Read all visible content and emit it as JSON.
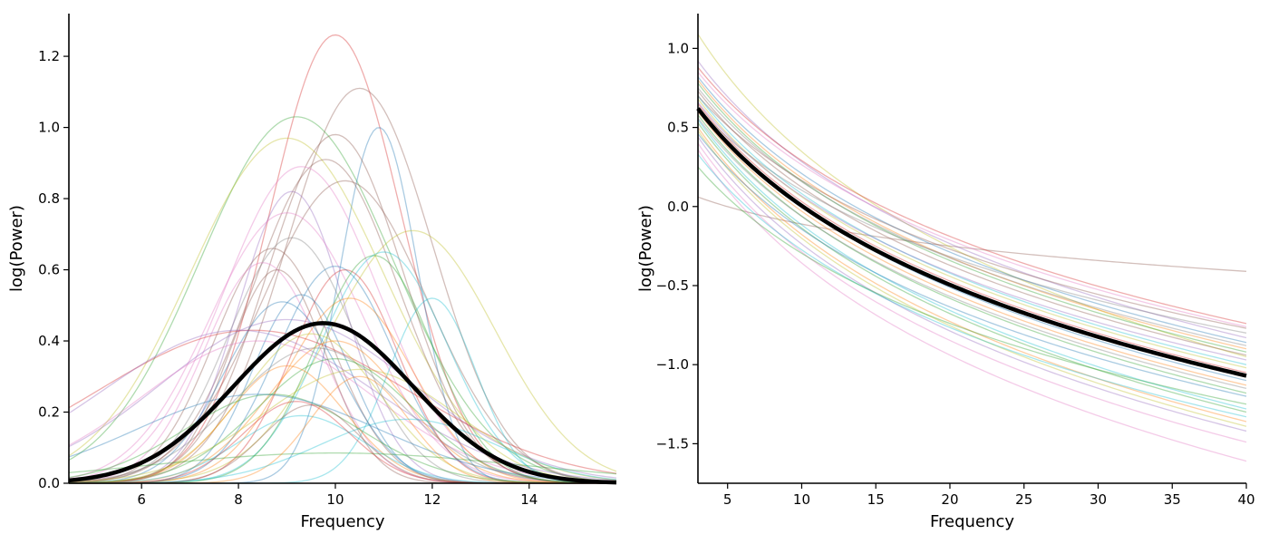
{
  "chart_data": [
    {
      "type": "line",
      "title": "",
      "xlabel": "Frequency",
      "ylabel": "log(Power)",
      "xlim": [
        4.5,
        15.8
      ],
      "ylim": [
        0,
        1.32
      ],
      "xticks": [
        6,
        8,
        10,
        12,
        14
      ],
      "xtick_labels": [
        "6",
        "8",
        "10",
        "12",
        "14"
      ],
      "yticks": [
        0.0,
        0.2,
        0.4,
        0.6,
        0.8,
        1.0,
        1.2
      ],
      "ytick_labels": [
        "0.0",
        "0.2",
        "0.4",
        "0.6",
        "0.8",
        "1.0",
        "1.2"
      ],
      "grid": false,
      "curve_model": "gaussian",
      "background_series": [
        {
          "color": "#d62728",
          "center": 10.0,
          "height": 1.26,
          "width": 1.35
        },
        {
          "color": "#8c564b",
          "center": 10.5,
          "height": 1.11,
          "width": 1.5
        },
        {
          "color": "#2ca02c",
          "center": 9.2,
          "height": 1.03,
          "width": 2.0
        },
        {
          "color": "#1f77b4",
          "center": 10.9,
          "height": 1.0,
          "width": 0.8
        },
        {
          "color": "#bcbd22",
          "center": 9.0,
          "height": 0.97,
          "width": 2.0
        },
        {
          "color": "#8c564b",
          "center": 10.0,
          "height": 0.98,
          "width": 1.4
        },
        {
          "color": "#8c564b",
          "center": 9.8,
          "height": 0.91,
          "width": 1.5
        },
        {
          "color": "#e377c2",
          "center": 9.3,
          "height": 0.89,
          "width": 1.6
        },
        {
          "color": "#8c564b",
          "center": 10.2,
          "height": 0.85,
          "width": 1.7
        },
        {
          "color": "#9467bd",
          "center": 9.1,
          "height": 0.82,
          "width": 1.1
        },
        {
          "color": "#e377c2",
          "center": 9.0,
          "height": 0.76,
          "width": 1.6
        },
        {
          "color": "#bcbd22",
          "center": 11.6,
          "height": 0.71,
          "width": 1.7
        },
        {
          "color": "#7f7f7f",
          "center": 9.1,
          "height": 0.69,
          "width": 1.3
        },
        {
          "color": "#8c564b",
          "center": 8.7,
          "height": 0.66,
          "width": 1.2
        },
        {
          "color": "#17becf",
          "center": 11.0,
          "height": 0.65,
          "width": 1.3
        },
        {
          "color": "#e377c2",
          "center": 8.5,
          "height": 0.62,
          "width": 1.2
        },
        {
          "color": "#1f77b4",
          "center": 10.0,
          "height": 0.61,
          "width": 1.2
        },
        {
          "color": "#d62728",
          "center": 10.2,
          "height": 0.6,
          "width": 1.1
        },
        {
          "color": "#8c564b",
          "center": 8.8,
          "height": 0.6,
          "width": 1.0
        },
        {
          "color": "#2ca02c",
          "center": 10.8,
          "height": 0.64,
          "width": 1.2
        },
        {
          "color": "#1f77b4",
          "center": 9.3,
          "height": 0.53,
          "width": 1.0
        },
        {
          "color": "#17becf",
          "center": 12.0,
          "height": 0.52,
          "width": 0.9
        },
        {
          "color": "#ff7f0e",
          "center": 10.3,
          "height": 0.52,
          "width": 1.3
        },
        {
          "color": "#1f77b4",
          "center": 8.9,
          "height": 0.51,
          "width": 1.2
        },
        {
          "color": "#9467bd",
          "center": 9.0,
          "height": 0.46,
          "width": 2.6
        },
        {
          "color": "#d62728",
          "center": 8.3,
          "height": 0.43,
          "width": 3.2
        },
        {
          "color": "#9467bd",
          "center": 8.0,
          "height": 0.43,
          "width": 2.8
        },
        {
          "color": "#e377c2",
          "center": 8.4,
          "height": 0.4,
          "width": 2.4
        },
        {
          "color": "#bcbd22",
          "center": 9.5,
          "height": 0.42,
          "width": 1.4
        },
        {
          "color": "#ff7f0e",
          "center": 10.0,
          "height": 0.4,
          "width": 1.4
        },
        {
          "color": "#7f7f7f",
          "center": 9.6,
          "height": 0.38,
          "width": 1.7
        },
        {
          "color": "#2ca02c",
          "center": 10.0,
          "height": 0.35,
          "width": 1.6
        },
        {
          "color": "#ff7f0e",
          "center": 9.0,
          "height": 0.33,
          "width": 1.2
        },
        {
          "color": "#bcbd22",
          "center": 10.5,
          "height": 0.32,
          "width": 2.0
        },
        {
          "color": "#2ca02c",
          "center": 8.7,
          "height": 0.25,
          "width": 1.8
        },
        {
          "color": "#1f77b4",
          "center": 8.4,
          "height": 0.25,
          "width": 2.5
        },
        {
          "color": "#8c564b",
          "center": 9.5,
          "height": 0.22,
          "width": 1.0
        },
        {
          "color": "#17becf",
          "center": 9.3,
          "height": 0.19,
          "width": 1.3
        },
        {
          "color": "#2ca02c",
          "center": 10.0,
          "height": 0.085,
          "width": 3.8
        },
        {
          "color": "#ff7f0e",
          "center": 10.5,
          "height": 0.3,
          "width": 1.0
        },
        {
          "color": "#17becf",
          "center": 11.5,
          "height": 0.18,
          "width": 1.8
        },
        {
          "color": "#d62728",
          "center": 9.2,
          "height": 0.23,
          "width": 1.1
        }
      ],
      "mean_series": {
        "color": "#000000",
        "center": 9.75,
        "height": 0.45,
        "width": 1.85
      }
    },
    {
      "type": "line",
      "title": "",
      "xlabel": "Frequency",
      "ylabel": "log(Power)",
      "xlim": [
        3,
        40
      ],
      "ylim": [
        -1.75,
        1.22
      ],
      "xticks": [
        5,
        10,
        15,
        20,
        25,
        30,
        35,
        40
      ],
      "xtick_labels": [
        "5",
        "10",
        "15",
        "20",
        "25",
        "30",
        "35",
        "40"
      ],
      "yticks": [
        -1.5,
        -1.0,
        -0.5,
        0.0,
        0.5,
        1.0
      ],
      "ytick_labels": [
        "−1.5",
        "−1.0",
        "−0.5",
        "0.0",
        "0.5",
        "1.0"
      ],
      "grid": false,
      "curve_model": "aperiodic",
      "background_series": [
        {
          "color": "#8c564b",
          "value_at_3": 0.06,
          "value_at_40": -0.41,
          "knee": 5.0
        },
        {
          "color": "#bcbd22",
          "value_at_3": 1.09,
          "value_at_40": -0.95,
          "knee": 5.0
        },
        {
          "color": "#9467bd",
          "value_at_3": 0.92,
          "value_at_40": -0.83,
          "knee": 5.0
        },
        {
          "color": "#e377c2",
          "value_at_3": 0.85,
          "value_at_40": -0.76,
          "knee": 5.0
        },
        {
          "color": "#d62728",
          "value_at_3": 0.88,
          "value_at_40": -0.74,
          "knee": 5.0
        },
        {
          "color": "#1f77b4",
          "value_at_3": 0.82,
          "value_at_40": -0.86,
          "knee": 5.0
        },
        {
          "color": "#ff7f0e",
          "value_at_3": 0.8,
          "value_at_40": -0.9,
          "knee": 5.0
        },
        {
          "color": "#2ca02c",
          "value_at_3": 0.78,
          "value_at_40": -0.92,
          "knee": 5.0
        },
        {
          "color": "#7f7f7f",
          "value_at_3": 0.75,
          "value_at_40": -0.88,
          "knee": 5.0
        },
        {
          "color": "#8c564b",
          "value_at_3": 0.73,
          "value_at_40": -0.94,
          "knee": 5.0
        },
        {
          "color": "#17becf",
          "value_at_3": 0.7,
          "value_at_40": -1.0,
          "knee": 5.0
        },
        {
          "color": "#bcbd22",
          "value_at_3": 0.68,
          "value_at_40": -1.02,
          "knee": 5.0
        },
        {
          "color": "#9467bd",
          "value_at_3": 0.66,
          "value_at_40": -0.97,
          "knee": 5.0
        },
        {
          "color": "#d62728",
          "value_at_3": 0.65,
          "value_at_40": -1.05,
          "knee": 5.0
        },
        {
          "color": "#1f77b4",
          "value_at_3": 0.63,
          "value_at_40": -1.1,
          "knee": 5.0
        },
        {
          "color": "#ff7f0e",
          "value_at_3": 0.6,
          "value_at_40": -1.13,
          "knee": 5.0
        },
        {
          "color": "#2ca02c",
          "value_at_3": 0.58,
          "value_at_40": -1.18,
          "knee": 5.0
        },
        {
          "color": "#7f7f7f",
          "value_at_3": 0.56,
          "value_at_40": -1.15,
          "knee": 5.0
        },
        {
          "color": "#17becf",
          "value_at_3": 0.55,
          "value_at_40": -1.28,
          "knee": 5.0
        },
        {
          "color": "#2ca02c",
          "value_at_3": 0.53,
          "value_at_40": -1.3,
          "knee": 5.0
        },
        {
          "color": "#ff7f0e",
          "value_at_3": 0.5,
          "value_at_40": -1.36,
          "knee": 5.0
        },
        {
          "color": "#bcbd22",
          "value_at_3": 0.48,
          "value_at_40": -1.39,
          "knee": 5.0
        },
        {
          "color": "#1f77b4",
          "value_at_3": 0.46,
          "value_at_40": -1.2,
          "knee": 5.0
        },
        {
          "color": "#9467bd",
          "value_at_3": 0.44,
          "value_at_40": -1.42,
          "knee": 5.0
        },
        {
          "color": "#e377c2",
          "value_at_3": 0.4,
          "value_at_40": -1.49,
          "knee": 5.0
        },
        {
          "color": "#e377c2",
          "value_at_3": 0.36,
          "value_at_40": -1.61,
          "knee": 5.0
        },
        {
          "color": "#17becf",
          "value_at_3": 0.33,
          "value_at_40": -1.33,
          "knee": 5.0
        },
        {
          "color": "#2ca02c",
          "value_at_3": 0.25,
          "value_at_40": -1.25,
          "knee": 5.0
        },
        {
          "color": "#8c564b",
          "value_at_3": 0.7,
          "value_at_40": -0.77,
          "knee": 5.0
        },
        {
          "color": "#7f7f7f",
          "value_at_3": 0.62,
          "value_at_40": -0.8,
          "knee": 5.0
        }
      ],
      "mean_series": {
        "color": "#000000",
        "value_at_3": 0.62,
        "value_at_40": -1.07,
        "knee": 5.0
      }
    }
  ]
}
